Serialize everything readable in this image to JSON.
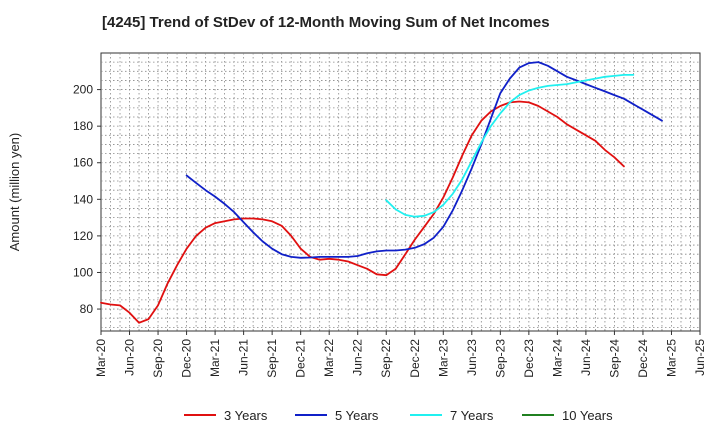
{
  "chart_data": {
    "type": "line",
    "title": "[4245]  Trend of StDev of 12-Month Moving Sum of Net Incomes",
    "ylabel": "Amount (million yen)",
    "xlabel": "",
    "x_ticks": [
      "Mar-20",
      "Jun-20",
      "Sep-20",
      "Dec-20",
      "Mar-21",
      "Jun-21",
      "Sep-21",
      "Dec-21",
      "Mar-22",
      "Jun-22",
      "Sep-22",
      "Dec-22",
      "Mar-23",
      "Jun-23",
      "Sep-23",
      "Dec-23",
      "Mar-24",
      "Jun-24",
      "Sep-24",
      "Dec-24",
      "Mar-25",
      "Jun-25"
    ],
    "y_ticks": [
      80,
      100,
      120,
      140,
      160,
      180,
      200
    ],
    "ylim": [
      68,
      220
    ],
    "grid": true,
    "legend_position": "bottom",
    "series": [
      {
        "name": "3 Years",
        "color": "#e01010",
        "start_index": 0,
        "values": [
          83.5,
          82.5,
          82,
          78,
          72.5,
          74.5,
          82,
          94,
          104,
          113,
          120,
          124.5,
          127,
          128,
          129,
          129.5,
          129.5,
          129,
          128,
          125.5,
          120,
          113,
          108.5,
          107,
          107.5,
          107,
          106,
          104,
          102,
          99,
          98.5,
          102,
          110,
          118,
          125,
          132,
          141,
          152,
          164,
          175,
          183,
          188,
          191,
          193,
          193.5,
          193,
          191,
          188,
          185,
          181,
          178,
          175,
          172,
          167,
          163,
          158
        ]
      },
      {
        "name": "5 Years",
        "color": "#1020c8",
        "start_index": 9,
        "values": [
          153,
          149,
          145,
          141.5,
          137.5,
          133,
          127.5,
          122,
          117,
          113,
          110,
          108.5,
          108,
          108.2,
          108.5,
          108.5,
          108.5,
          108.5,
          109,
          110.5,
          111.5,
          112,
          112,
          112.5,
          113.5,
          115.5,
          119,
          125,
          134,
          145,
          157,
          170,
          184,
          198,
          206,
          212,
          214.5,
          215,
          213,
          210,
          207,
          205,
          203,
          201,
          199,
          197,
          195,
          192,
          189,
          186,
          183
        ]
      },
      {
        "name": "7 Years",
        "color": "#20f0f0",
        "start_index": 30,
        "values": [
          139.5,
          134.5,
          131.5,
          130.5,
          131,
          133,
          137,
          143,
          151,
          161,
          171,
          180,
          187,
          193,
          197,
          199.5,
          201,
          202,
          202.5,
          203,
          204,
          205,
          206,
          207,
          207.5,
          208,
          208
        ]
      },
      {
        "name": "10 Years",
        "color": "#208020",
        "start_index": 0,
        "values": []
      }
    ]
  }
}
